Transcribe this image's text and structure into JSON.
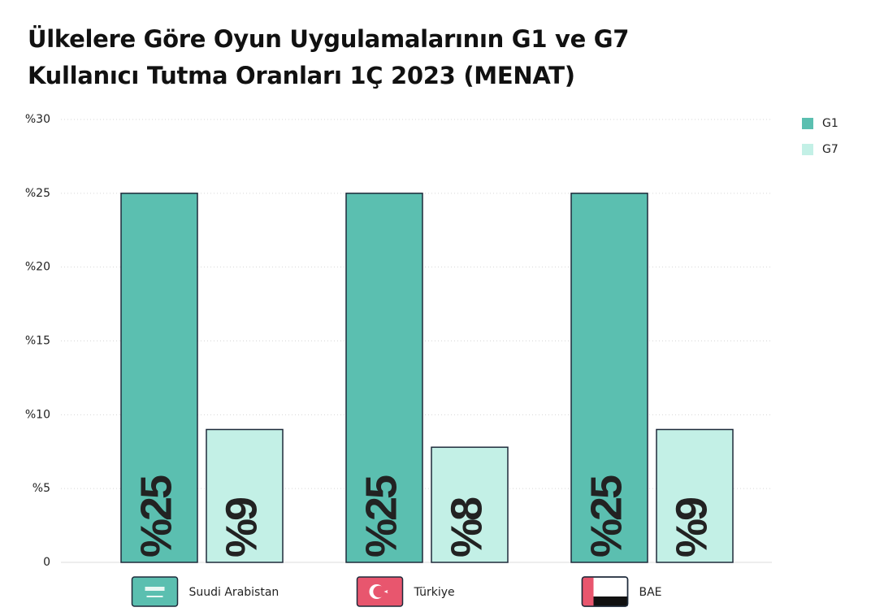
{
  "chart_data": {
    "type": "bar",
    "title": "Ülkelere Göre Oyun Uygulamalarının G1 ve G7 Kullanıcı Tutma Oranları 1Ç 2023 (MENAT)",
    "categories": [
      "Suudi Arabistan",
      "Türkiye",
      "BAE"
    ],
    "series": [
      {
        "name": "G1",
        "color": "#5bbfb0",
        "values": [
          25,
          25,
          25
        ],
        "value_labels": [
          "%25",
          "%25",
          "%25"
        ]
      },
      {
        "name": "G7",
        "color": "#c3f0e6",
        "values": [
          9,
          7.8,
          9
        ],
        "value_labels": [
          "%9",
          "%8",
          "%9"
        ]
      }
    ],
    "ylim": [
      0,
      30
    ],
    "yticks": [
      0,
      {
        "value": 5,
        "label": "%5"
      },
      {
        "value": 10,
        "label": "%10"
      },
      {
        "value": 15,
        "label": "%15"
      },
      {
        "value": 20,
        "label": "%20"
      },
      {
        "value": 25,
        "label": "%25"
      },
      {
        "value": 30,
        "label": "%30"
      }
    ],
    "grid": true,
    "legend": "top-right"
  }
}
